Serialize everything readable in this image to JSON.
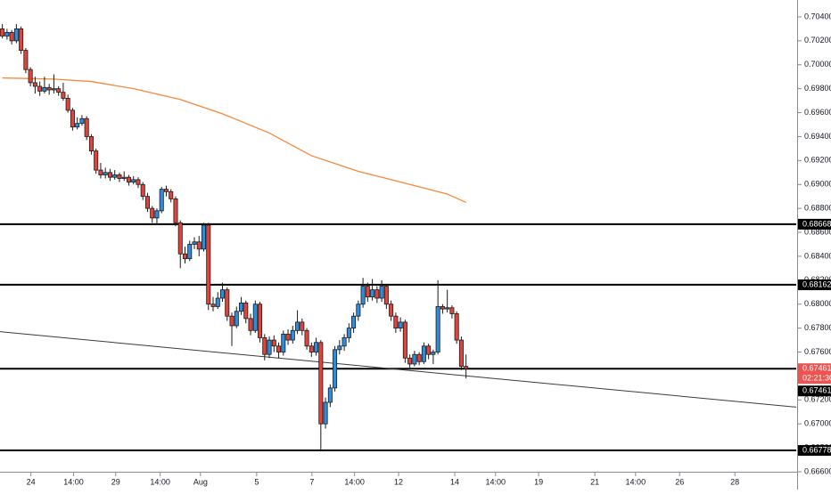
{
  "chart_data": {
    "type": "candlestick",
    "up_color": "#2d8ee0",
    "down_color": "#e2433c",
    "xlim": [
      -0.5,
      169.5
    ],
    "ylim": [
      0.666,
      0.70541
    ],
    "xticks": [
      {
        "value": 6.1,
        "label": "24"
      },
      {
        "value": 15.2,
        "label": "14:00"
      },
      {
        "value": 24.2,
        "label": "29"
      },
      {
        "value": 33.7,
        "label": "14:00"
      },
      {
        "value": 42.3,
        "label": "Aug"
      },
      {
        "value": 54.3,
        "label": "5"
      },
      {
        "value": 66.1,
        "label": "7"
      },
      {
        "value": 75.2,
        "label": "14:00"
      },
      {
        "value": 84.6,
        "label": "12"
      },
      {
        "value": 96.6,
        "label": "14"
      },
      {
        "value": 105.3,
        "label": "14:00"
      },
      {
        "value": 114.5,
        "label": "19"
      },
      {
        "value": 126.5,
        "label": "21"
      },
      {
        "value": 135.2,
        "label": "14:00"
      },
      {
        "value": 144.6,
        "label": "26"
      },
      {
        "value": 156.4,
        "label": "28"
      }
    ],
    "yticks": [
      {
        "value": 0.704,
        "label": "0.70400"
      },
      {
        "value": 0.702,
        "label": "0.70200"
      },
      {
        "value": 0.7,
        "label": "0.70000"
      },
      {
        "value": 0.698,
        "label": "0.69800"
      },
      {
        "value": 0.696,
        "label": "0.69600"
      },
      {
        "value": 0.694,
        "label": "0.69400"
      },
      {
        "value": 0.692,
        "label": "0.69200"
      },
      {
        "value": 0.69,
        "label": "0.69000"
      },
      {
        "value": 0.688,
        "label": "0.68800"
      },
      {
        "value": 0.686,
        "label": "0.68600"
      },
      {
        "value": 0.684,
        "label": "0.68400"
      },
      {
        "value": 0.682,
        "label": "0.68200"
      },
      {
        "value": 0.68,
        "label": "0.68000"
      },
      {
        "value": 0.678,
        "label": "0.67800"
      },
      {
        "value": 0.676,
        "label": "0.67600"
      },
      {
        "value": 0.674,
        "label": "0.67400"
      },
      {
        "value": 0.672,
        "label": "0.67200"
      },
      {
        "value": 0.67,
        "label": "0.67000"
      },
      {
        "value": 0.668,
        "label": "0.66800"
      },
      {
        "value": 0.666,
        "label": "0.66600"
      }
    ],
    "candles": [
      [
        0.703,
        0.7034,
        0.7022,
        0.7024
      ],
      [
        0.7024,
        0.703,
        0.7021,
        0.7027
      ],
      [
        0.7027,
        0.7029,
        0.7017,
        0.702
      ],
      [
        0.702,
        0.7034,
        0.7018,
        0.703
      ],
      [
        0.703,
        0.7032,
        0.7009,
        0.7012
      ],
      [
        0.7012,
        0.7014,
        0.6993,
        0.6996
      ],
      [
        0.6996,
        0.6998,
        0.6982,
        0.6985
      ],
      [
        0.6985,
        0.699,
        0.6976,
        0.6982
      ],
      [
        0.6982,
        0.6986,
        0.6974,
        0.6978
      ],
      [
        0.6978,
        0.699,
        0.6976,
        0.6981
      ],
      [
        0.6981,
        0.6984,
        0.6975,
        0.6979
      ],
      [
        0.6979,
        0.6992,
        0.6976,
        0.698
      ],
      [
        0.698,
        0.6982,
        0.6974,
        0.6977
      ],
      [
        0.6977,
        0.6985,
        0.697,
        0.6972
      ],
      [
        0.6972,
        0.6975,
        0.696,
        0.6962
      ],
      [
        0.6962,
        0.6964,
        0.6945,
        0.6948
      ],
      [
        0.6948,
        0.6956,
        0.6946,
        0.6951
      ],
      [
        0.6951,
        0.6958,
        0.6949,
        0.6955
      ],
      [
        0.6955,
        0.6957,
        0.6937,
        0.694
      ],
      [
        0.694,
        0.6942,
        0.6925,
        0.6928
      ],
      [
        0.6928,
        0.693,
        0.6909,
        0.6912
      ],
      [
        0.6912,
        0.6918,
        0.6905,
        0.6908
      ],
      [
        0.6908,
        0.6914,
        0.6905,
        0.691
      ],
      [
        0.691,
        0.6913,
        0.6903,
        0.6906
      ],
      [
        0.6906,
        0.6912,
        0.6904,
        0.6908
      ],
      [
        0.6908,
        0.691,
        0.6902,
        0.6905
      ],
      [
        0.6905,
        0.6911,
        0.6903,
        0.6906
      ],
      [
        0.6906,
        0.6908,
        0.6899,
        0.6902
      ],
      [
        0.6902,
        0.6907,
        0.69,
        0.6904
      ],
      [
        0.6904,
        0.6906,
        0.6897,
        0.69
      ],
      [
        0.69,
        0.6902,
        0.6887,
        0.689
      ],
      [
        0.689,
        0.6893,
        0.6877,
        0.688
      ],
      [
        0.688,
        0.6882,
        0.6868,
        0.6872
      ],
      [
        0.6872,
        0.688,
        0.6866,
        0.6878
      ],
      [
        0.6878,
        0.6898,
        0.6876,
        0.6896
      ],
      [
        0.6896,
        0.6899,
        0.689,
        0.6894
      ],
      [
        0.6894,
        0.6896,
        0.6885,
        0.6888
      ],
      [
        0.6888,
        0.689,
        0.6865,
        0.6868
      ],
      [
        0.6868,
        0.687,
        0.683,
        0.6842
      ],
      [
        0.6842,
        0.6848,
        0.6834,
        0.6838
      ],
      [
        0.6838,
        0.6853,
        0.6836,
        0.685
      ],
      [
        0.685,
        0.6856,
        0.6846,
        0.6852
      ],
      [
        0.6852,
        0.6857,
        0.684,
        0.6846
      ],
      [
        0.6846,
        0.6868,
        0.6844,
        0.6866
      ],
      [
        0.6866,
        0.6868,
        0.6795,
        0.68
      ],
      [
        0.68,
        0.6806,
        0.6794,
        0.6798
      ],
      [
        0.6798,
        0.681,
        0.6796,
        0.6805
      ],
      [
        0.6805,
        0.6818,
        0.6802,
        0.6812
      ],
      [
        0.6812,
        0.6814,
        0.6786,
        0.679
      ],
      [
        0.679,
        0.6793,
        0.6765,
        0.6782
      ],
      [
        0.6782,
        0.6798,
        0.678,
        0.6794
      ],
      [
        0.6794,
        0.6806,
        0.6791,
        0.6801
      ],
      [
        0.6801,
        0.6803,
        0.6784,
        0.6788
      ],
      [
        0.6788,
        0.6792,
        0.6774,
        0.6778
      ],
      [
        0.6778,
        0.6803,
        0.6776,
        0.68
      ],
      [
        0.68,
        0.6802,
        0.6768,
        0.6772
      ],
      [
        0.6772,
        0.6775,
        0.6753,
        0.6758
      ],
      [
        0.6758,
        0.6773,
        0.6755,
        0.677
      ],
      [
        0.677,
        0.6774,
        0.676,
        0.6765
      ],
      [
        0.6765,
        0.6768,
        0.6755,
        0.676
      ],
      [
        0.676,
        0.6778,
        0.6757,
        0.6775
      ],
      [
        0.6775,
        0.6779,
        0.6766,
        0.677
      ],
      [
        0.677,
        0.6782,
        0.6767,
        0.6778
      ],
      [
        0.6778,
        0.6795,
        0.6775,
        0.6785
      ],
      [
        0.6785,
        0.6788,
        0.6774,
        0.6778
      ],
      [
        0.6778,
        0.678,
        0.6762,
        0.6765
      ],
      [
        0.6765,
        0.6768,
        0.6756,
        0.676
      ],
      [
        0.676,
        0.6772,
        0.6757,
        0.6768
      ],
      [
        0.6768,
        0.677,
        0.66778,
        0.67
      ],
      [
        0.67,
        0.6722,
        0.6696,
        0.6718
      ],
      [
        0.6718,
        0.6733,
        0.6714,
        0.673
      ],
      [
        0.673,
        0.6765,
        0.6727,
        0.6762
      ],
      [
        0.6762,
        0.677,
        0.6758,
        0.6765
      ],
      [
        0.6765,
        0.6775,
        0.6761,
        0.6772
      ],
      [
        0.6772,
        0.6784,
        0.6768,
        0.678
      ],
      [
        0.678,
        0.6793,
        0.6776,
        0.679
      ],
      [
        0.679,
        0.6803,
        0.6786,
        0.68
      ],
      [
        0.68,
        0.6822,
        0.6797,
        0.6815
      ],
      [
        0.6815,
        0.6818,
        0.6802,
        0.6806
      ],
      [
        0.6806,
        0.6821,
        0.6803,
        0.6812
      ],
      [
        0.6812,
        0.6815,
        0.6801,
        0.6805
      ],
      [
        0.6805,
        0.682,
        0.6802,
        0.6815
      ],
      [
        0.6815,
        0.6817,
        0.6796,
        0.68
      ],
      [
        0.68,
        0.6803,
        0.6786,
        0.679
      ],
      [
        0.679,
        0.6793,
        0.6776,
        0.678
      ],
      [
        0.678,
        0.6789,
        0.6777,
        0.6785
      ],
      [
        0.6785,
        0.6787,
        0.6751,
        0.6755
      ],
      [
        0.6755,
        0.6758,
        0.6747,
        0.675
      ],
      [
        0.675,
        0.6761,
        0.6748,
        0.6758
      ],
      [
        0.6758,
        0.676,
        0.6749,
        0.6752
      ],
      [
        0.6752,
        0.6768,
        0.675,
        0.6765
      ],
      [
        0.6765,
        0.6767,
        0.6754,
        0.6758
      ],
      [
        0.6758,
        0.6762,
        0.675,
        0.676
      ],
      [
        0.676,
        0.682,
        0.6758,
        0.6798
      ],
      [
        0.6798,
        0.68,
        0.6792,
        0.6796
      ],
      [
        0.6796,
        0.6812,
        0.6793,
        0.6797
      ],
      [
        0.6797,
        0.6799,
        0.6788,
        0.6792
      ],
      [
        0.6792,
        0.6794,
        0.6767,
        0.677
      ],
      [
        0.677,
        0.6773,
        0.6745,
        0.6748
      ],
      [
        0.6748,
        0.6758,
        0.6738,
        0.67461
      ]
    ],
    "moving_average": {
      "color": "#f5883a",
      "x": [
        0,
        11,
        19,
        28,
        38,
        47,
        57,
        66,
        76,
        85,
        95,
        99
      ],
      "values": [
        0.6989,
        0.6988,
        0.6986,
        0.698,
        0.6971,
        0.6959,
        0.6943,
        0.6924,
        0.6911,
        0.6902,
        0.6892,
        0.6885
      ]
    },
    "trendline": {
      "color": "#3a3a3a",
      "values": [
        0.6777,
        0.6714
      ]
    },
    "levels": [
      {
        "value": 0.68668,
        "label": "0.68668"
      },
      {
        "value": 0.68162,
        "label": "0.68162"
      },
      {
        "value": 0.67461,
        "label": "0.67461"
      },
      {
        "value": 0.66778,
        "label": "0.66778"
      }
    ],
    "last_price": {
      "value": 0.67461,
      "label": "0.67461",
      "countdown": "02:21:30",
      "color": "#ef5350"
    }
  }
}
